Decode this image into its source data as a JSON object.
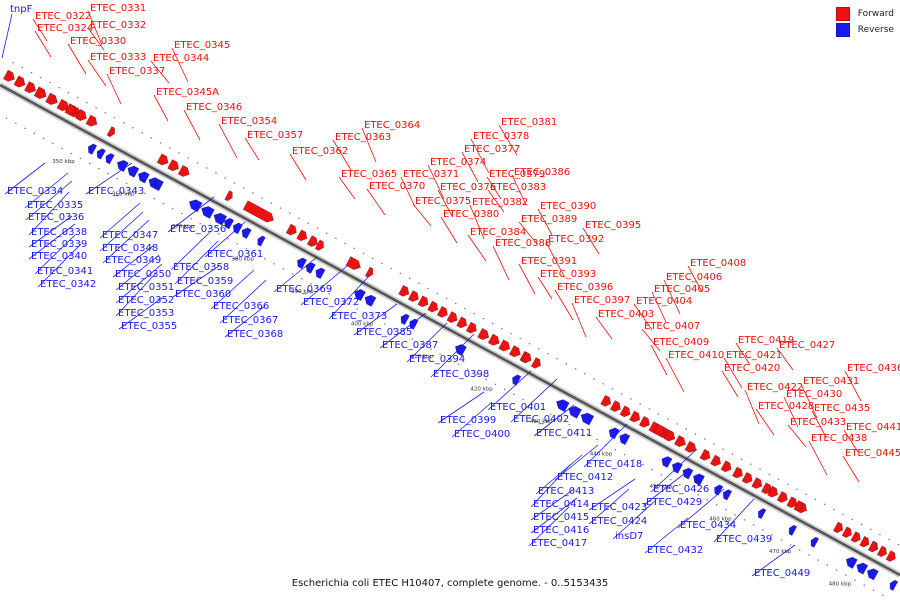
{
  "caption": "Escherichia coli ETEC H10407, complete genome. - 0..5153435",
  "legend": {
    "forward_label": "Forward",
    "reverse_label": "Reverse",
    "forward_color": "#ee1111",
    "reverse_color": "#1a1aee"
  },
  "colors": {
    "forward": "#ee1111",
    "reverse": "#1a1aee",
    "axis": "#555555"
  },
  "ticks": [
    "350 kbp",
    "360 kbp",
    "370 kbp",
    "380 kbp",
    "390 kbp",
    "400 kbp",
    "410 kbp",
    "420 kbp",
    "430 kbp",
    "440 kbp",
    "450 kbp",
    "460 kbp",
    "470 kbp",
    "480 kbp"
  ],
  "top_left_label": "tnpF",
  "forward_labels": [
    "ETEC_0322",
    "ETEC_0324",
    "ETEC_0330",
    "ETEC_0331",
    "ETEC_0332",
    "ETEC_0333",
    "ETEC_0337",
    "ETEC_0345",
    "ETEC_0344",
    "ETEC_0345A",
    "ETEC_0346",
    "ETEC_0354",
    "ETEC_0357",
    "ETEC_0362",
    "ETEC_0363",
    "ETEC_0364",
    "ETEC_0365",
    "ETEC_0370",
    "ETEC_0371",
    "ETEC_0374",
    "ETEC_0375",
    "ETEC_0376",
    "ETEC_0377",
    "ETEC_0378",
    "ETEC_0379",
    "ETEC_0380",
    "ETEC_0381",
    "ETEC_0382",
    "ETEC_0383",
    "ETEC_0384",
    "ETEC_0386",
    "ETEC_0388",
    "ETEC_0389",
    "ETEC_0390",
    "ETEC_0391",
    "ETEC_0392",
    "ETEC_0393",
    "ETEC_0395",
    "ETEC_0396",
    "ETEC_0397",
    "ETEC_0403",
    "ETEC_0404",
    "ETEC_0405",
    "ETEC_0406",
    "ETEC_0407",
    "ETEC_0408",
    "ETEC_0409",
    "ETEC_0410",
    "ETEC_0419",
    "ETEC_0420",
    "ETEC_0421",
    "ETEC_0422",
    "ETEC_0427",
    "ETEC_0428",
    "ETEC_0430",
    "ETEC_0431",
    "ETEC_0433",
    "ETEC_0435",
    "ETEC_0436",
    "ETEC_0438",
    "ETEC_0441",
    "ETEC_0445"
  ],
  "reverse_labels": [
    "ETEC_0334",
    "ETEC_0335",
    "ETEC_0336",
    "ETEC_0338",
    "ETEC_0339",
    "ETEC_0340",
    "ETEC_0341",
    "ETEC_0342",
    "ETEC_0343",
    "ETEC_0347",
    "ETEC_0348",
    "ETEC_0349",
    "ETEC_0350",
    "ETEC_0351",
    "ETEC_0352",
    "ETEC_0353",
    "ETEC_0355",
    "ETEC_0356",
    "ETEC_0358",
    "ETEC_0359",
    "ETEC_0360",
    "ETEC_0361",
    "ETEC_0366",
    "ETEC_0367",
    "ETEC_0368",
    "ETEC_0369",
    "ETEC_0372",
    "ETEC_0373",
    "ETEC_0385",
    "ETEC_0387",
    "ETEC_0394",
    "ETEC_0398",
    "ETEC_0399",
    "ETEC_0400",
    "ETEC_0401",
    "ETEC_0402",
    "ETEC_0411",
    "ETEC_0412",
    "ETEC_0413",
    "ETEC_0414",
    "ETEC_0415",
    "ETEC_0416",
    "ETEC_0417",
    "ETEC_0418",
    "ETEC_0423",
    "ETEC_0424",
    "insD7",
    "ETEC_0426",
    "ETEC_0429",
    "ETEC_0432",
    "ETEC_0434",
    "ETEC_0439",
    "ETEC_0449"
  ]
}
